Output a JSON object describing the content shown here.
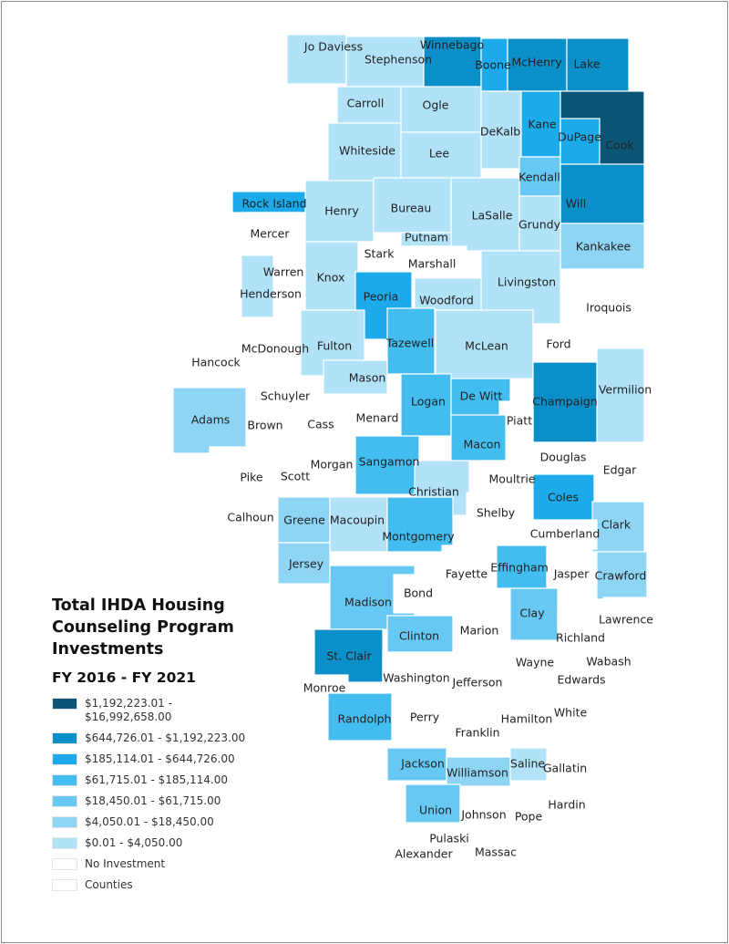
{
  "legend": {
    "title": "Total IHDA Housing Counseling Program Investments",
    "subtitle": "FY 2016 - FY 2021",
    "items": [
      {
        "label": "$1,192,223.01 - $16,992,658.00",
        "color": "#0b5576"
      },
      {
        "label": "$644,726.01 - $1,192,223.00",
        "color": "#0b8fc8"
      },
      {
        "label": "$185,114.01 - $644,726.00",
        "color": "#1caaeb"
      },
      {
        "label": "$61,715.01 - $185,114.00",
        "color": "#43bdf0"
      },
      {
        "label": "$18,450.01 - $61,715.00",
        "color": "#67c9f3"
      },
      {
        "label": "$4,050.01 - $18,450.00",
        "color": "#8ed5f5"
      },
      {
        "label": "$0.01 - $4,050.00",
        "color": "#b2e2f8"
      },
      {
        "label": "No Investment",
        "color": "#ffffff"
      },
      {
        "label": "Counties",
        "color": "#ffffff"
      }
    ]
  },
  "counties": [
    {
      "name": "Jo Daviess",
      "tier": 1
    },
    {
      "name": "Stephenson",
      "tier": 1
    },
    {
      "name": "Winnebago",
      "tier": 6
    },
    {
      "name": "Boone",
      "tier": 5
    },
    {
      "name": "McHenry",
      "tier": 6
    },
    {
      "name": "Lake",
      "tier": 6
    },
    {
      "name": "Carroll",
      "tier": 1
    },
    {
      "name": "Ogle",
      "tier": 1
    },
    {
      "name": "DeKalb",
      "tier": 1
    },
    {
      "name": "Kane",
      "tier": 5
    },
    {
      "name": "Cook",
      "tier": 7
    },
    {
      "name": "DuPage",
      "tier": 5
    },
    {
      "name": "Whiteside",
      "tier": 1
    },
    {
      "name": "Lee",
      "tier": 1
    },
    {
      "name": "Kendall",
      "tier": 3
    },
    {
      "name": "Will",
      "tier": 6
    },
    {
      "name": "Rock Island",
      "tier": 5
    },
    {
      "name": "Henry",
      "tier": 1
    },
    {
      "name": "Bureau",
      "tier": 1
    },
    {
      "name": "LaSalle",
      "tier": 1
    },
    {
      "name": "Grundy",
      "tier": 1
    },
    {
      "name": "Kankakee",
      "tier": 2
    },
    {
      "name": "Mercer",
      "tier": 0
    },
    {
      "name": "Stark",
      "tier": 0
    },
    {
      "name": "Putnam",
      "tier": 1
    },
    {
      "name": "Marshall",
      "tier": 0
    },
    {
      "name": "Livingston",
      "tier": 1
    },
    {
      "name": "Iroquois",
      "tier": 0
    },
    {
      "name": "Warren",
      "tier": 0
    },
    {
      "name": "Henderson",
      "tier": 1
    },
    {
      "name": "Knox",
      "tier": 1
    },
    {
      "name": "Peoria",
      "tier": 5
    },
    {
      "name": "Woodford",
      "tier": 1
    },
    {
      "name": "Ford",
      "tier": 0
    },
    {
      "name": "Hancock",
      "tier": 0
    },
    {
      "name": "McDonough",
      "tier": 0
    },
    {
      "name": "Fulton",
      "tier": 1
    },
    {
      "name": "Tazewell",
      "tier": 4
    },
    {
      "name": "McLean",
      "tier": 1
    },
    {
      "name": "Vermilion",
      "tier": 1
    },
    {
      "name": "Champaign",
      "tier": 6
    },
    {
      "name": "Adams",
      "tier": 2
    },
    {
      "name": "Schuyler",
      "tier": 0
    },
    {
      "name": "Brown",
      "tier": 0
    },
    {
      "name": "Mason",
      "tier": 1
    },
    {
      "name": "Cass",
      "tier": 0
    },
    {
      "name": "Menard",
      "tier": 0
    },
    {
      "name": "Logan",
      "tier": 4
    },
    {
      "name": "De Witt",
      "tier": 4
    },
    {
      "name": "Piatt",
      "tier": 0
    },
    {
      "name": "Macon",
      "tier": 4
    },
    {
      "name": "Douglas",
      "tier": 0
    },
    {
      "name": "Edgar",
      "tier": 0
    },
    {
      "name": "Pike",
      "tier": 0
    },
    {
      "name": "Scott",
      "tier": 0
    },
    {
      "name": "Morgan",
      "tier": 0
    },
    {
      "name": "Sangamon",
      "tier": 4
    },
    {
      "name": "Christian",
      "tier": 1
    },
    {
      "name": "Moultrie",
      "tier": 0
    },
    {
      "name": "Shelby",
      "tier": 0
    },
    {
      "name": "Coles",
      "tier": 5
    },
    {
      "name": "Clark",
      "tier": 2
    },
    {
      "name": "Cumberland",
      "tier": 0
    },
    {
      "name": "Calhoun",
      "tier": 0
    },
    {
      "name": "Greene",
      "tier": 2
    },
    {
      "name": "Macoupin",
      "tier": 1
    },
    {
      "name": "Montgomery",
      "tier": 4
    },
    {
      "name": "Jersey",
      "tier": 2
    },
    {
      "name": "Fayette",
      "tier": 0
    },
    {
      "name": "Effingham",
      "tier": 4
    },
    {
      "name": "Jasper",
      "tier": 0
    },
    {
      "name": "Crawford",
      "tier": 2
    },
    {
      "name": "Madison",
      "tier": 3
    },
    {
      "name": "Bond",
      "tier": 0
    },
    {
      "name": "Marion",
      "tier": 0
    },
    {
      "name": "Clay",
      "tier": 3
    },
    {
      "name": "Richland",
      "tier": 0
    },
    {
      "name": "Lawrence",
      "tier": 0
    },
    {
      "name": "St. Clair",
      "tier": 6
    },
    {
      "name": "Clinton",
      "tier": 3
    },
    {
      "name": "Washington",
      "tier": 0
    },
    {
      "name": "Jefferson",
      "tier": 0
    },
    {
      "name": "Wayne",
      "tier": 0
    },
    {
      "name": "Wabash",
      "tier": 0
    },
    {
      "name": "Edwards",
      "tier": 0
    },
    {
      "name": "Monroe",
      "tier": 0
    },
    {
      "name": "Randolph",
      "tier": 4
    },
    {
      "name": "Perry",
      "tier": 0
    },
    {
      "name": "Franklin",
      "tier": 0
    },
    {
      "name": "Hamilton",
      "tier": 0
    },
    {
      "name": "White",
      "tier": 0
    },
    {
      "name": "Jackson",
      "tier": 3
    },
    {
      "name": "Williamson",
      "tier": 2
    },
    {
      "name": "Saline",
      "tier": 1
    },
    {
      "name": "Gallatin",
      "tier": 0
    },
    {
      "name": "Union",
      "tier": 3
    },
    {
      "name": "Johnson",
      "tier": 0
    },
    {
      "name": "Pope",
      "tier": 0
    },
    {
      "name": "Hardin",
      "tier": 0
    },
    {
      "name": "Alexander",
      "tier": 0
    },
    {
      "name": "Pulaski",
      "tier": 0
    },
    {
      "name": "Massac",
      "tier": 0
    }
  ]
}
